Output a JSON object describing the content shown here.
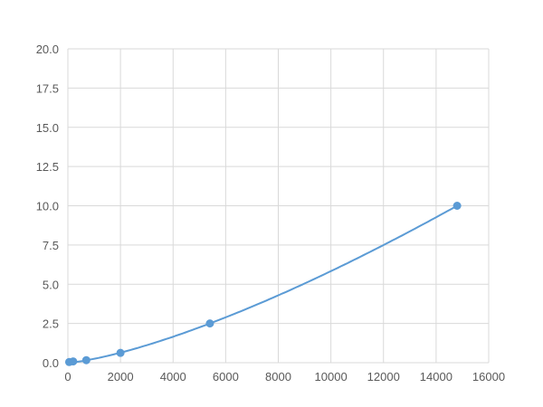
{
  "chart_data": {
    "type": "scatter",
    "title": "",
    "xlabel": "",
    "ylabel": "",
    "xlim": [
      0,
      16000
    ],
    "ylim": [
      0,
      20
    ],
    "x_ticks": [
      "0",
      "2000",
      "4000",
      "6000",
      "8000",
      "10000",
      "12000",
      "14000",
      "16000"
    ],
    "y_ticks": [
      "0.0",
      "2.5",
      "5.0",
      "7.5",
      "10.0",
      "12.5",
      "15.0",
      "17.5",
      "20.0"
    ],
    "grid": true,
    "legend": "none",
    "color": "#5b9bd5",
    "series": [
      {
        "x": [
          50,
          200,
          700,
          2000,
          5400,
          14800
        ],
        "y": [
          0.04,
          0.08,
          0.16,
          0.625,
          2.5,
          10.0
        ]
      }
    ],
    "trendline": "smooth curve"
  }
}
